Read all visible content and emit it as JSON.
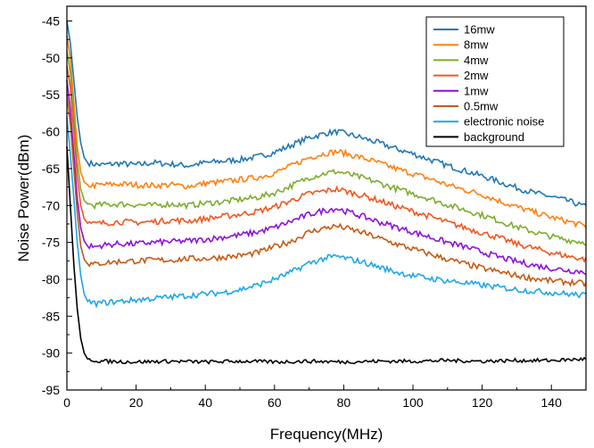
{
  "chart_data": {
    "type": "line",
    "xlabel": "Frequency(MHz)",
    "ylabel": "Noise Power(dBm)",
    "xlim": [
      0,
      150
    ],
    "ylim": [
      -95,
      -43
    ],
    "x_ticks": [
      0,
      20,
      40,
      60,
      80,
      100,
      120,
      140
    ],
    "y_ticks": [
      -95,
      -90,
      -85,
      -80,
      -75,
      -70,
      -65,
      -60,
      -55,
      -50,
      -45
    ],
    "grid": false,
    "legend_position": "top-right",
    "series": [
      {
        "name": "16mw",
        "color": "#1f77b4",
        "points": [
          [
            0,
            -45
          ],
          [
            1,
            -48
          ],
          [
            2,
            -53
          ],
          [
            3,
            -58
          ],
          [
            4,
            -61.5
          ],
          [
            5,
            -63.5
          ],
          [
            6,
            -64.2
          ],
          [
            8,
            -64.4
          ],
          [
            10,
            -64.5
          ],
          [
            15,
            -64.3
          ],
          [
            20,
            -64.5
          ],
          [
            25,
            -64.2
          ],
          [
            30,
            -64.4
          ],
          [
            35,
            -64.6
          ],
          [
            40,
            -64.2
          ],
          [
            45,
            -64
          ],
          [
            50,
            -63.8
          ],
          [
            55,
            -63.4
          ],
          [
            60,
            -62.8
          ],
          [
            65,
            -61.8
          ],
          [
            70,
            -60.8
          ],
          [
            75,
            -60.2
          ],
          [
            78,
            -60
          ],
          [
            80,
            -60.2
          ],
          [
            85,
            -60.8
          ],
          [
            90,
            -61.5
          ],
          [
            95,
            -62.3
          ],
          [
            100,
            -63
          ],
          [
            105,
            -63.8
          ],
          [
            110,
            -64.6
          ],
          [
            115,
            -65.3
          ],
          [
            120,
            -66
          ],
          [
            125,
            -66.8
          ],
          [
            130,
            -67.6
          ],
          [
            135,
            -68.3
          ],
          [
            140,
            -68.8
          ],
          [
            145,
            -69.4
          ],
          [
            150,
            -70.2
          ]
        ]
      },
      {
        "name": "8mw",
        "color": "#ff7f0e",
        "points": [
          [
            0,
            -47
          ],
          [
            1,
            -50
          ],
          [
            2,
            -56
          ],
          [
            3,
            -62
          ],
          [
            4,
            -65.5
          ],
          [
            5,
            -66.8
          ],
          [
            6,
            -67.2
          ],
          [
            8,
            -67.3
          ],
          [
            10,
            -67.2
          ],
          [
            15,
            -67.1
          ],
          [
            20,
            -67.2
          ],
          [
            25,
            -67.3
          ],
          [
            30,
            -67.2
          ],
          [
            35,
            -67.4
          ],
          [
            40,
            -67
          ],
          [
            45,
            -66.8
          ],
          [
            50,
            -66.5
          ],
          [
            55,
            -66.2
          ],
          [
            60,
            -65.6
          ],
          [
            65,
            -64.6
          ],
          [
            70,
            -63.5
          ],
          [
            75,
            -62.9
          ],
          [
            78,
            -62.7
          ],
          [
            80,
            -62.9
          ],
          [
            85,
            -63.5
          ],
          [
            90,
            -64.2
          ],
          [
            95,
            -65
          ],
          [
            100,
            -65.7
          ],
          [
            105,
            -66.4
          ],
          [
            110,
            -67.2
          ],
          [
            115,
            -67.9
          ],
          [
            120,
            -68.5
          ],
          [
            125,
            -69.4
          ],
          [
            130,
            -70.2
          ],
          [
            135,
            -70.9
          ],
          [
            140,
            -71.6
          ],
          [
            145,
            -72.2
          ],
          [
            150,
            -72.8
          ]
        ]
      },
      {
        "name": "4mw",
        "color": "#7cac2c",
        "points": [
          [
            0,
            -49
          ],
          [
            1,
            -52
          ],
          [
            2,
            -58
          ],
          [
            3,
            -64
          ],
          [
            4,
            -67.8
          ],
          [
            5,
            -69.3
          ],
          [
            6,
            -69.8
          ],
          [
            8,
            -70
          ],
          [
            10,
            -69.9
          ],
          [
            15,
            -69.8
          ],
          [
            20,
            -69.9
          ],
          [
            25,
            -70
          ],
          [
            30,
            -69.8
          ],
          [
            35,
            -70
          ],
          [
            40,
            -69.7
          ],
          [
            45,
            -69.5
          ],
          [
            50,
            -69.2
          ],
          [
            55,
            -68.9
          ],
          [
            60,
            -68.3
          ],
          [
            65,
            -67.3
          ],
          [
            70,
            -66.2
          ],
          [
            75,
            -65.6
          ],
          [
            78,
            -65.4
          ],
          [
            80,
            -65.6
          ],
          [
            85,
            -66.2
          ],
          [
            90,
            -66.9
          ],
          [
            95,
            -67.7
          ],
          [
            100,
            -68.4
          ],
          [
            105,
            -69.1
          ],
          [
            110,
            -69.9
          ],
          [
            115,
            -70.6
          ],
          [
            120,
            -71.3
          ],
          [
            125,
            -72.1
          ],
          [
            130,
            -72.9
          ],
          [
            135,
            -73.6
          ],
          [
            140,
            -74.2
          ],
          [
            145,
            -74.7
          ],
          [
            150,
            -75
          ]
        ]
      },
      {
        "name": "2mw",
        "color": "#f2561d",
        "points": [
          [
            0,
            -51
          ],
          [
            1,
            -54
          ],
          [
            2,
            -60
          ],
          [
            3,
            -66
          ],
          [
            4,
            -70
          ],
          [
            5,
            -71.8
          ],
          [
            6,
            -72.4
          ],
          [
            8,
            -72.5
          ],
          [
            10,
            -72.4
          ],
          [
            15,
            -72.2
          ],
          [
            20,
            -72.3
          ],
          [
            25,
            -72.2
          ],
          [
            30,
            -72
          ],
          [
            35,
            -72.1
          ],
          [
            40,
            -71.8
          ],
          [
            45,
            -71.5
          ],
          [
            50,
            -71.2
          ],
          [
            55,
            -70.8
          ],
          [
            60,
            -70.2
          ],
          [
            65,
            -69.3
          ],
          [
            70,
            -68.4
          ],
          [
            75,
            -68
          ],
          [
            78,
            -67.8
          ],
          [
            80,
            -68
          ],
          [
            85,
            -68.6
          ],
          [
            90,
            -69.3
          ],
          [
            95,
            -70.1
          ],
          [
            100,
            -70.8
          ],
          [
            105,
            -71.5
          ],
          [
            110,
            -72.3
          ],
          [
            115,
            -73
          ],
          [
            120,
            -73.7
          ],
          [
            125,
            -74.4
          ],
          [
            130,
            -75.2
          ],
          [
            135,
            -75.8
          ],
          [
            140,
            -76.4
          ],
          [
            145,
            -76.9
          ],
          [
            150,
            -77.3
          ]
        ]
      },
      {
        "name": "1mw",
        "color": "#8b12d8",
        "points": [
          [
            0,
            -53
          ],
          [
            1,
            -57
          ],
          [
            2,
            -63
          ],
          [
            3,
            -69
          ],
          [
            4,
            -73
          ],
          [
            5,
            -74.8
          ],
          [
            6,
            -75.5
          ],
          [
            8,
            -75.6
          ],
          [
            10,
            -75.4
          ],
          [
            15,
            -75.2
          ],
          [
            20,
            -75.2
          ],
          [
            25,
            -75
          ],
          [
            30,
            -74.9
          ],
          [
            35,
            -74.8
          ],
          [
            40,
            -74.6
          ],
          [
            45,
            -74.3
          ],
          [
            50,
            -74
          ],
          [
            55,
            -73.6
          ],
          [
            60,
            -73
          ],
          [
            65,
            -72.1
          ],
          [
            70,
            -71.2
          ],
          [
            75,
            -70.6
          ],
          [
            78,
            -70.4
          ],
          [
            80,
            -70.7
          ],
          [
            85,
            -71.4
          ],
          [
            90,
            -72.2
          ],
          [
            95,
            -72.9
          ],
          [
            100,
            -73.6
          ],
          [
            105,
            -74.3
          ],
          [
            110,
            -75
          ],
          [
            115,
            -75.6
          ],
          [
            120,
            -76.3
          ],
          [
            125,
            -77
          ],
          [
            130,
            -77.6
          ],
          [
            135,
            -78.1
          ],
          [
            140,
            -78.5
          ],
          [
            145,
            -78.8
          ],
          [
            150,
            -79
          ]
        ]
      },
      {
        "name": "0.5mw",
        "color": "#c65a12",
        "points": [
          [
            0,
            -55
          ],
          [
            1,
            -59
          ],
          [
            2,
            -65
          ],
          [
            3,
            -71
          ],
          [
            4,
            -75.5
          ],
          [
            5,
            -77.3
          ],
          [
            6,
            -77.9
          ],
          [
            8,
            -78
          ],
          [
            10,
            -77.8
          ],
          [
            15,
            -77.6
          ],
          [
            20,
            -77.5
          ],
          [
            25,
            -77.4
          ],
          [
            30,
            -77.4
          ],
          [
            35,
            -77.2
          ],
          [
            40,
            -77.2
          ],
          [
            45,
            -77
          ],
          [
            50,
            -76.8
          ],
          [
            55,
            -76.4
          ],
          [
            60,
            -75.6
          ],
          [
            65,
            -74.8
          ],
          [
            70,
            -73.6
          ],
          [
            75,
            -73
          ],
          [
            78,
            -72.8
          ],
          [
            80,
            -73
          ],
          [
            85,
            -73.6
          ],
          [
            90,
            -74.4
          ],
          [
            95,
            -75.2
          ],
          [
            100,
            -75.9
          ],
          [
            105,
            -76.6
          ],
          [
            110,
            -77.3
          ],
          [
            115,
            -77.9
          ],
          [
            120,
            -78.5
          ],
          [
            125,
            -79
          ],
          [
            130,
            -79.5
          ],
          [
            135,
            -79.9
          ],
          [
            140,
            -80.2
          ],
          [
            145,
            -80.4
          ],
          [
            150,
            -80.6
          ]
        ]
      },
      {
        "name": "electronic noise",
        "color": "#1ea6e8",
        "points": [
          [
            0,
            -58
          ],
          [
            1,
            -63
          ],
          [
            2,
            -69
          ],
          [
            3,
            -75
          ],
          [
            4,
            -79.5
          ],
          [
            5,
            -82
          ],
          [
            6,
            -83
          ],
          [
            8,
            -83.3
          ],
          [
            10,
            -83.2
          ],
          [
            15,
            -83
          ],
          [
            20,
            -82.8
          ],
          [
            25,
            -82.6
          ],
          [
            30,
            -82.4
          ],
          [
            35,
            -82.2
          ],
          [
            40,
            -82
          ],
          [
            45,
            -81.8
          ],
          [
            50,
            -81.4
          ],
          [
            55,
            -80.8
          ],
          [
            60,
            -80
          ],
          [
            65,
            -79
          ],
          [
            70,
            -77.8
          ],
          [
            75,
            -77.1
          ],
          [
            78,
            -76.9
          ],
          [
            80,
            -77.1
          ],
          [
            85,
            -77.6
          ],
          [
            90,
            -78.3
          ],
          [
            95,
            -79
          ],
          [
            100,
            -79.5
          ],
          [
            105,
            -79.9
          ],
          [
            110,
            -80.2
          ],
          [
            115,
            -80.5
          ],
          [
            120,
            -80.8
          ],
          [
            125,
            -81.1
          ],
          [
            130,
            -81.4
          ],
          [
            135,
            -81.6
          ],
          [
            140,
            -81.8
          ],
          [
            145,
            -82
          ],
          [
            150,
            -82.2
          ]
        ]
      },
      {
        "name": "background",
        "color": "#000000",
        "points": [
          [
            0,
            -62
          ],
          [
            1,
            -70
          ],
          [
            2,
            -78
          ],
          [
            3,
            -84
          ],
          [
            4,
            -88
          ],
          [
            5,
            -90
          ],
          [
            6,
            -90.8
          ],
          [
            8,
            -91
          ],
          [
            10,
            -91.1
          ],
          [
            20,
            -91.2
          ],
          [
            30,
            -91.1
          ],
          [
            40,
            -91.2
          ],
          [
            50,
            -91.1
          ],
          [
            60,
            -91.2
          ],
          [
            70,
            -91.1
          ],
          [
            80,
            -91.2
          ],
          [
            90,
            -91.1
          ],
          [
            100,
            -91.1
          ],
          [
            110,
            -91
          ],
          [
            120,
            -91.1
          ],
          [
            130,
            -91
          ],
          [
            140,
            -91
          ],
          [
            150,
            -90.8
          ]
        ]
      }
    ]
  }
}
